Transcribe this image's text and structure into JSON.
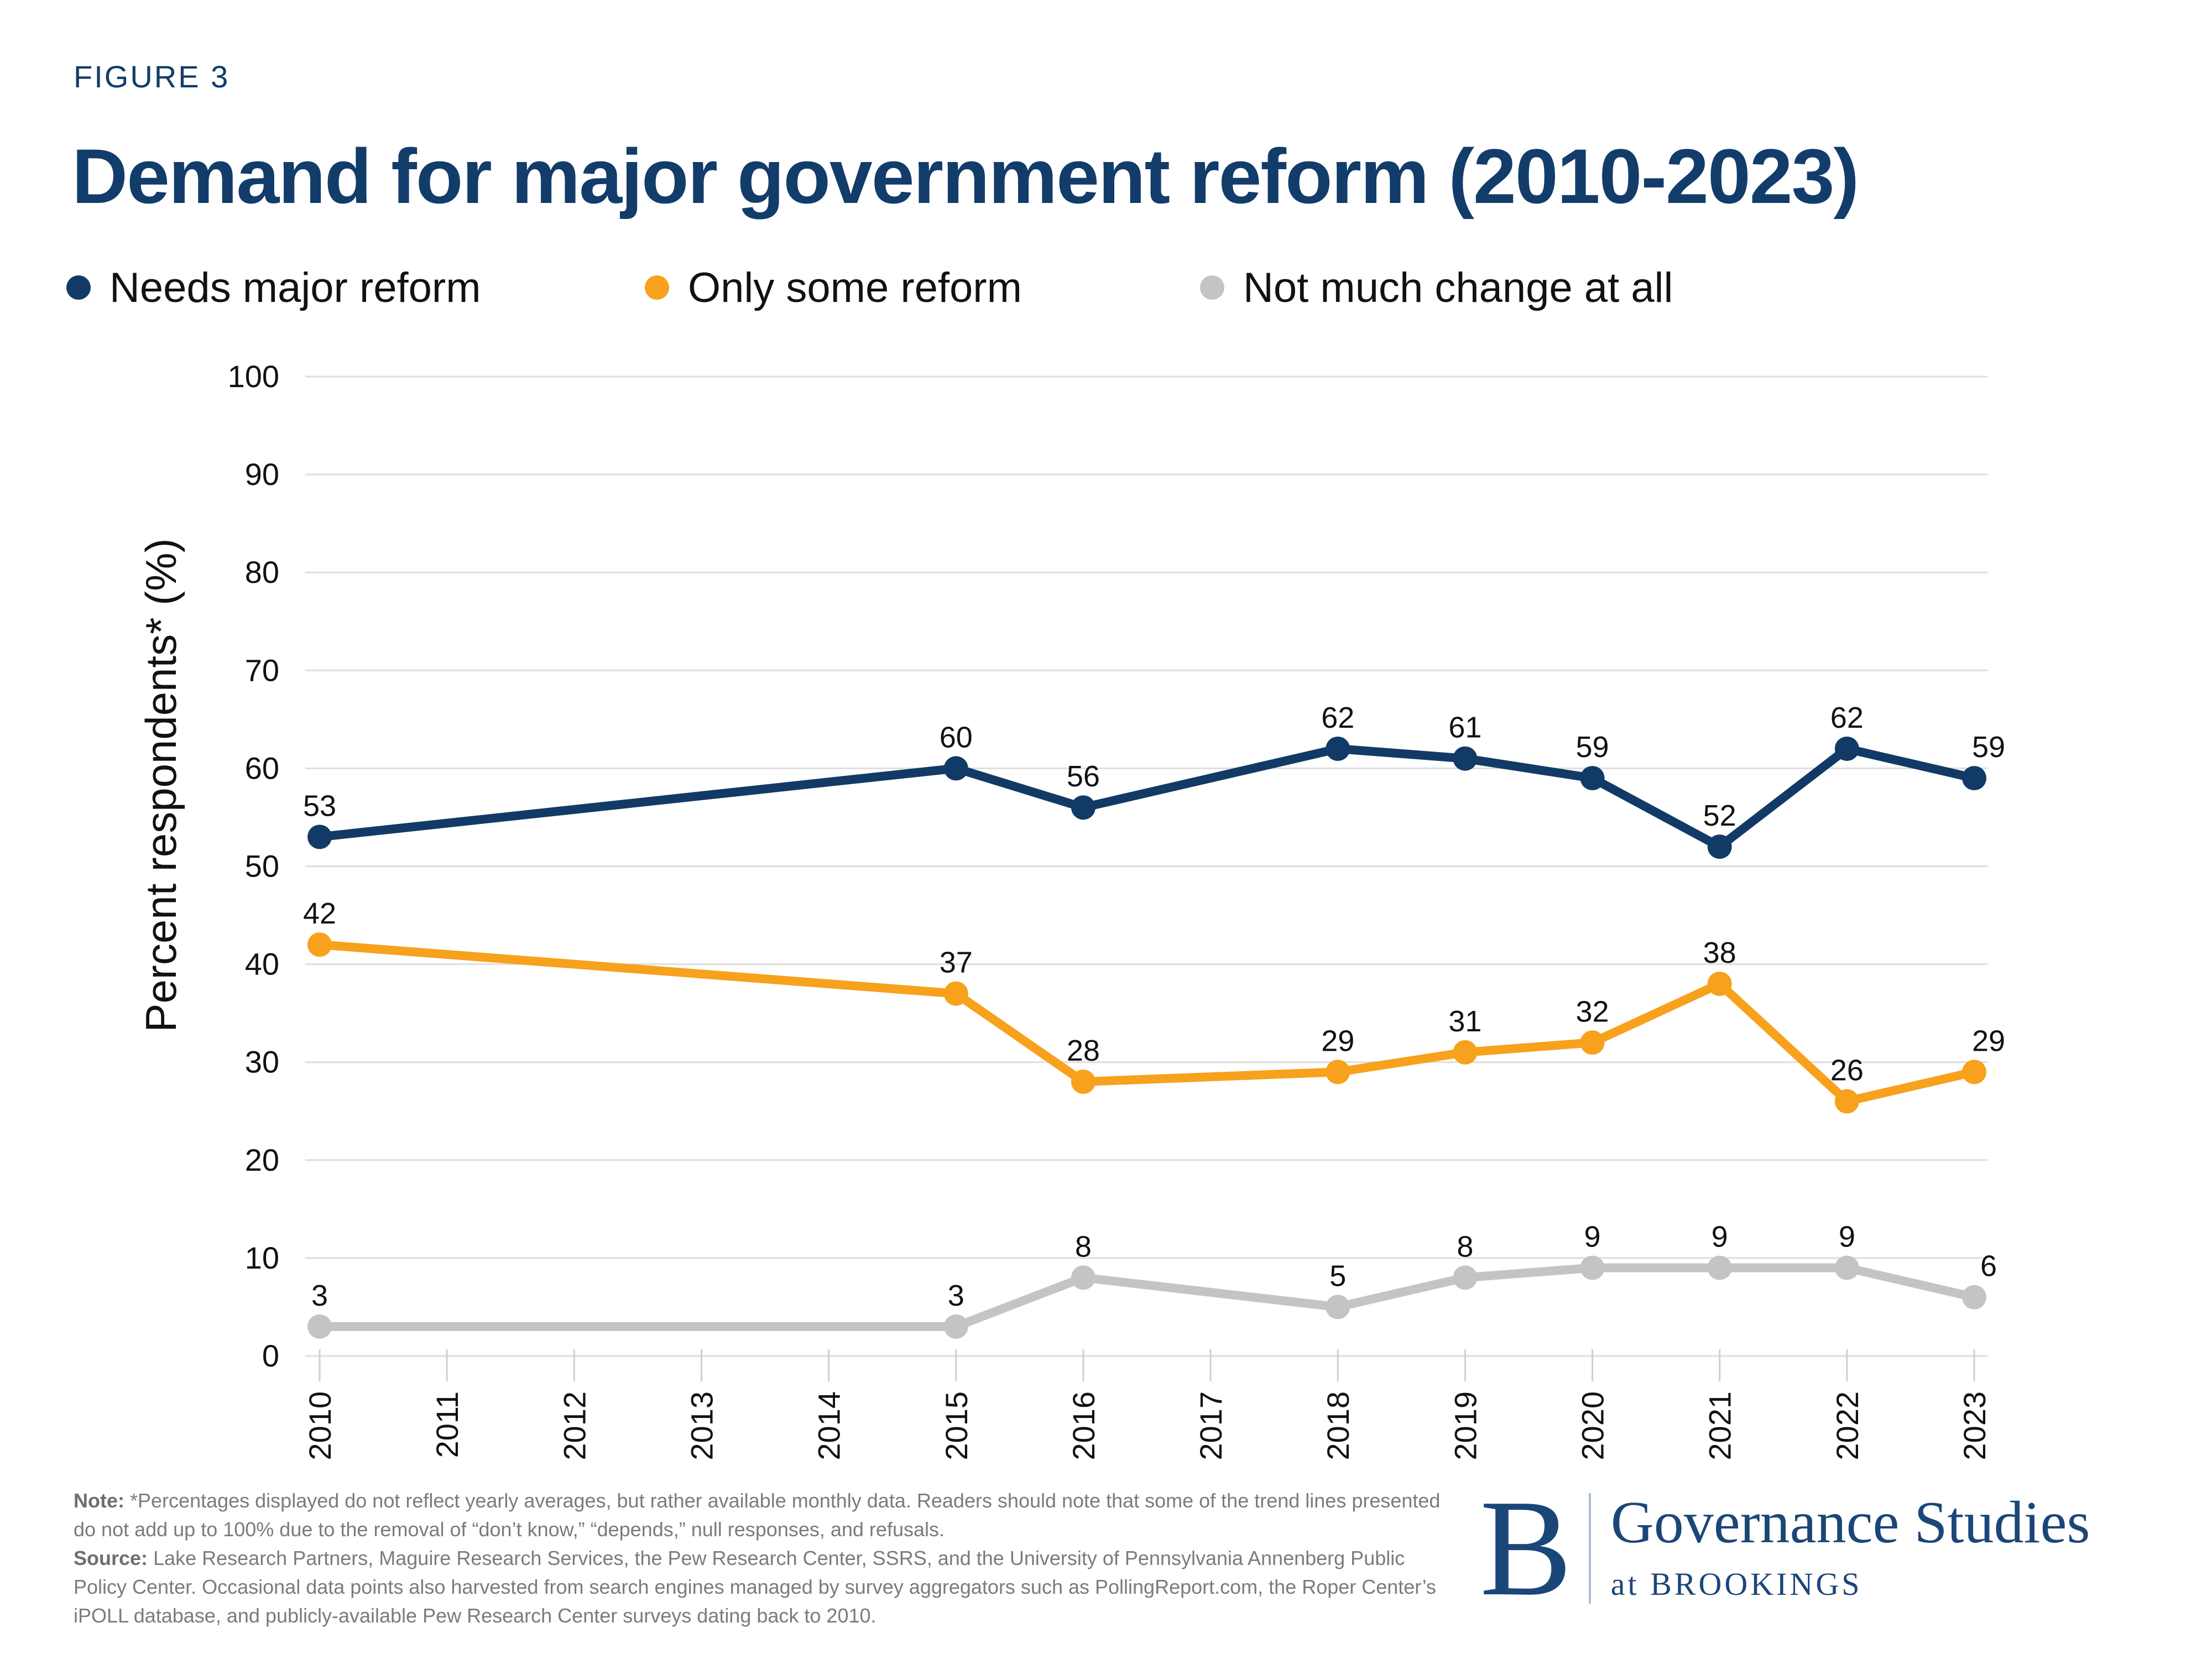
{
  "page": {
    "figure_label": "FIGURE 3",
    "title": "Demand for major government reform (2010-2023)"
  },
  "colors": {
    "navy": "#123A66",
    "orange": "#F7A11C",
    "gray": "#C4C4C4",
    "gridline": "#DEDEDE",
    "tick": "#CFCFCF",
    "label_text": "#111111",
    "note_text": "#7B7B7B",
    "logo_navy": "#1B4678"
  },
  "legend": {
    "items": [
      {
        "label": "Needs major reform",
        "color": "#123A66"
      },
      {
        "label": "Only some reform",
        "color": "#F7A11C"
      },
      {
        "label": "Not much change at all",
        "color": "#C4C4C4"
      }
    ]
  },
  "chart_data": {
    "type": "line",
    "title": "Demand for major government reform (2010-2023)",
    "xlabel": "",
    "ylabel": "Percent respondents* (%)",
    "ylim": [
      0,
      100
    ],
    "yticks": [
      0,
      10,
      20,
      30,
      40,
      50,
      60,
      70,
      80,
      90,
      100
    ],
    "categories": [
      2010,
      2011,
      2012,
      2013,
      2014,
      2015,
      2016,
      2017,
      2018,
      2019,
      2020,
      2021,
      2022,
      2023
    ],
    "x_data_years": [
      2010,
      2015,
      2016,
      2018,
      2019,
      2020,
      2021,
      2022,
      2023
    ],
    "series": [
      {
        "name": "Needs major reform",
        "color": "#123A66",
        "years": [
          2010,
          2015,
          2016,
          2018,
          2019,
          2020,
          2021,
          2022,
          2023
        ],
        "values": [
          53,
          60,
          56,
          62,
          61,
          59,
          52,
          62,
          59
        ]
      },
      {
        "name": "Only some reform",
        "color": "#F7A11C",
        "years": [
          2010,
          2015,
          2016,
          2018,
          2019,
          2020,
          2021,
          2022,
          2023
        ],
        "values": [
          42,
          37,
          28,
          29,
          31,
          32,
          38,
          26,
          29
        ]
      },
      {
        "name": "Not much change at all",
        "color": "#C4C4C4",
        "years": [
          2010,
          2015,
          2016,
          2018,
          2019,
          2020,
          2021,
          2022,
          2023
        ],
        "values": [
          3,
          3,
          8,
          5,
          8,
          9,
          9,
          9,
          6
        ]
      }
    ],
    "grid": true,
    "legend_position": "top",
    "data_labels": true
  },
  "note": {
    "note_label": "Note:",
    "note_text": "*Percentages displayed do not reflect yearly averages, but rather available monthly data. Readers should note that some of the trend lines presented do not add up to 100% due to the removal of “don’t know,” “depends,” null responses, and refusals.",
    "source_label": "Source:",
    "source_text": "Lake Research Partners, Maguire Research Services, the Pew Research Center, SSRS, and the University of Pennsylvania Annenberg Public Policy Center. Occasional data points also harvested from search engines managed by survey aggregators such as PollingReport.com, the Roper Center’s iPOLL database, and publicly-available Pew Research Center surveys dating back to 2010."
  },
  "logo": {
    "b": "B",
    "line1": "Governance Studies",
    "line2": "at BROOKINGS"
  }
}
